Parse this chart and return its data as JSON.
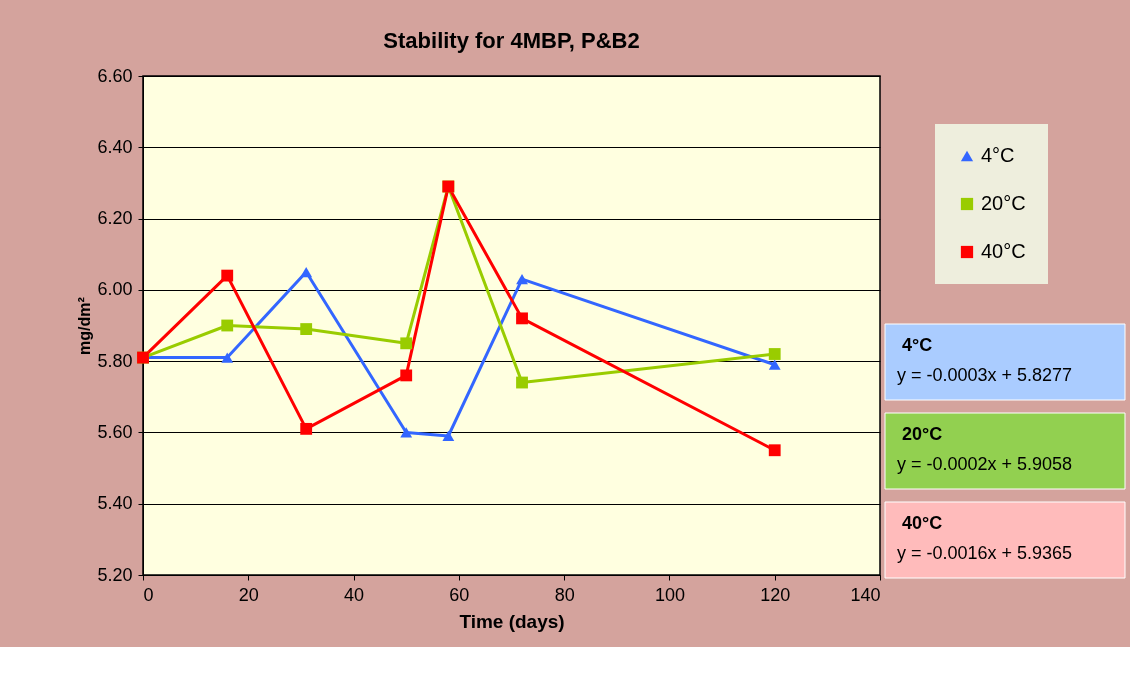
{
  "chart_data": {
    "type": "line",
    "title": "Stability for 4MBP, P&B2",
    "xlabel": "Time (days)",
    "ylabel": "mg/dm²",
    "x": [
      0,
      16,
      31,
      50,
      58,
      72,
      120
    ],
    "series": [
      {
        "name": "4°C",
        "color": "#3366ff",
        "marker": "triangle",
        "values": [
          5.81,
          5.81,
          6.05,
          5.6,
          5.59,
          6.03,
          5.79
        ]
      },
      {
        "name": "20°C",
        "color": "#99cc00",
        "marker": "square",
        "values": [
          5.81,
          5.9,
          5.89,
          5.85,
          6.29,
          5.74,
          5.82
        ]
      },
      {
        "name": "40°C",
        "color": "#ff0000",
        "marker": "square",
        "values": [
          5.81,
          6.04,
          5.61,
          5.76,
          6.29,
          5.92,
          5.55
        ]
      }
    ],
    "xlim": [
      0,
      140
    ],
    "xticks": [
      0,
      20,
      40,
      60,
      80,
      100,
      120,
      140
    ],
    "ylim": [
      5.2,
      6.6
    ],
    "yticks": [
      {
        "value": 5.2,
        "label": "5.20"
      },
      {
        "value": 5.4,
        "label": "5.40"
      },
      {
        "value": 5.6,
        "label": "5.60"
      },
      {
        "value": 5.8,
        "label": "5.80"
      },
      {
        "value": 6.0,
        "label": "6.00"
      },
      {
        "value": 6.2,
        "label": "6.20"
      },
      {
        "value": 6.4,
        "label": "6.40"
      },
      {
        "value": 6.6,
        "label": "6.60"
      }
    ],
    "grid": "y",
    "legend": "top right",
    "line_style": "solid",
    "annotations": [
      "4°C\ny = -0.0003x + 5.8277",
      "20°C\ny = -0.0002x + 5.9058",
      "40°C\ny = -0.0016x + 5.9365"
    ]
  }
}
